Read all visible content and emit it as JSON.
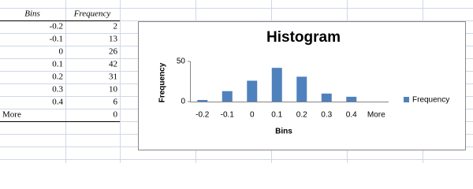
{
  "table": {
    "header": [
      "Bins",
      "Frequency"
    ],
    "rows": [
      [
        "-0.2",
        "2"
      ],
      [
        "-0.1",
        "13"
      ],
      [
        "0",
        "26"
      ],
      [
        "0.1",
        "42"
      ],
      [
        "0.2",
        "31"
      ],
      [
        "0.3",
        "10"
      ],
      [
        "0.4",
        "6"
      ],
      [
        "More",
        "0"
      ]
    ]
  },
  "chart_data": {
    "type": "bar",
    "title": "Histogram",
    "x_label": "Bins",
    "y_label": "Frequency",
    "categories": [
      "-0.2",
      "-0.1",
      "0",
      "0.1",
      "0.2",
      "0.3",
      "0.4",
      "More"
    ],
    "series": [
      {
        "name": "Frequency",
        "color": "#4f81bd",
        "values": [
          2,
          13,
          26,
          42,
          31,
          10,
          6,
          0
        ]
      }
    ],
    "ylim": [
      0,
      50
    ],
    "yticks": [
      0,
      50
    ],
    "grid": false,
    "legend": "right"
  }
}
